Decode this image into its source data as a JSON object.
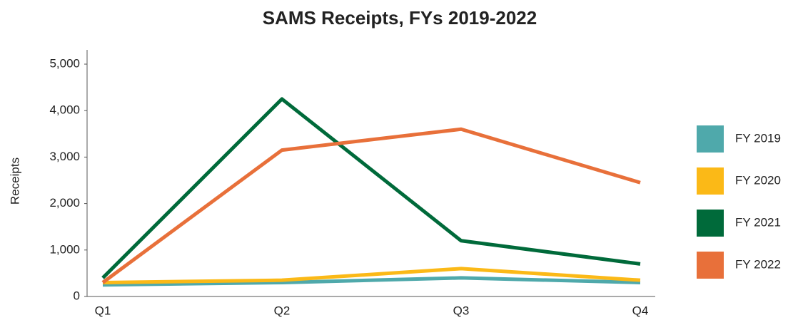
{
  "chart_data": {
    "type": "line",
    "title": "SAMS Receipts, FYs 2019-2022",
    "y_label": "Receipts",
    "categories": [
      "Q1",
      "Q2",
      "Q3",
      "Q4"
    ],
    "series": [
      {
        "name": "FY 2019",
        "color": "#4fa9ab",
        "values": [
          250,
          300,
          400,
          300
        ]
      },
      {
        "name": "FY 2020",
        "color": "#fbb917",
        "values": [
          300,
          350,
          600,
          350
        ]
      },
      {
        "name": "FY 2021",
        "color": "#006a3a",
        "values": [
          400,
          4250,
          1200,
          700
        ]
      },
      {
        "name": "FY 2022",
        "color": "#e8703a",
        "values": [
          300,
          3150,
          3600,
          2450
        ]
      }
    ],
    "ylim": [
      0,
      5000
    ],
    "yticks": [
      0,
      {
        "value": 1000,
        "label": "1,000"
      },
      {
        "value": 2000,
        "label": "2,000"
      },
      {
        "value": 3000,
        "label": "3,000"
      },
      {
        "value": 4000,
        "label": "4,000"
      },
      {
        "value": 5000,
        "label": "5,000"
      }
    ],
    "legend": "right"
  }
}
